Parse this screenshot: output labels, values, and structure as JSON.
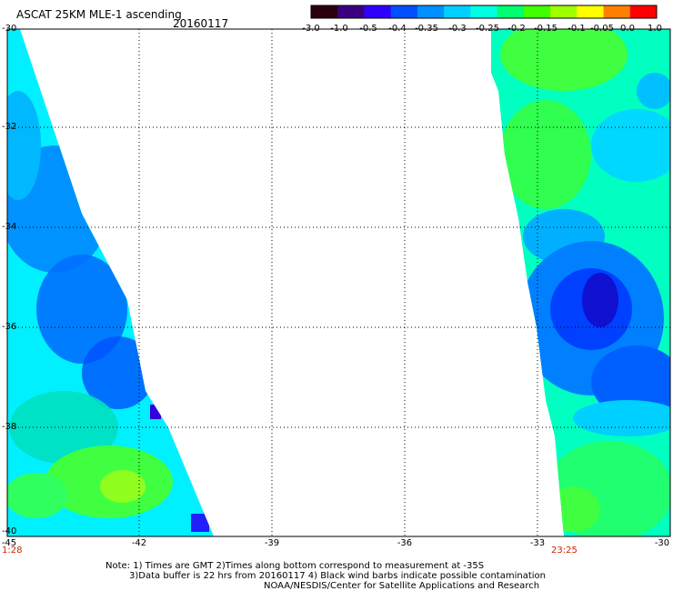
{
  "title": "ASCAT 25KM MLE-1 ascending",
  "date": "20160117",
  "colorbar": {
    "labels": [
      "-3.0",
      "-1.0",
      "-0.5",
      "-0.4",
      "-0.35",
      "-0.3",
      "-0.25",
      "-0.2",
      "-0.15",
      "-0.1",
      "-0.05",
      "0.0",
      "1.0"
    ],
    "colors": [
      "#2a0010",
      "#3a0080",
      "#3000ff",
      "#0050ff",
      "#0090ff",
      "#00d0ff",
      "#00ffe0",
      "#00ff70",
      "#40ff00",
      "#a0ff00",
      "#ffff00",
      "#ff8000",
      "#ff0000"
    ]
  },
  "map": {
    "lon_labels": [
      "-45",
      "-42",
      "-39",
      "-36",
      "-33",
      "-30"
    ],
    "lat_labels": [
      "-30",
      "-32",
      "-34",
      "-36",
      "-38",
      "-40"
    ],
    "time_left": "1:28",
    "time_right": "23:25"
  },
  "notes": {
    "line1": "Note: 1) Times are GMT 2)Times along bottom correspond to measurement at -35S",
    "line2": "3)Data buffer is 22 hrs from 20160117 4) Black wind barbs indicate possible contamination",
    "line3": "NOAA/NESDIS/Center for Satellite Applications and Research"
  }
}
